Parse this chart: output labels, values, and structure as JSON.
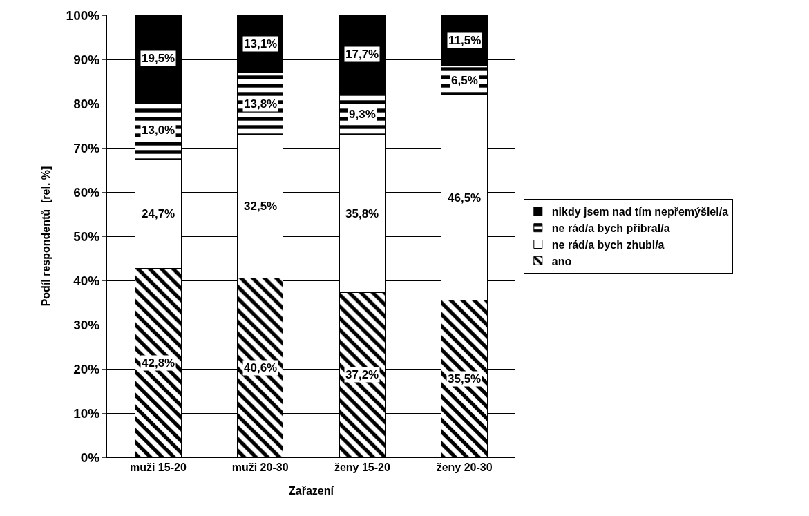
{
  "chart_data": {
    "type": "bar",
    "stacked": true,
    "xlabel": "Zařazení",
    "ylabel": "Podíl respondentů  [rel. %]",
    "categories": [
      "muži 15-20",
      "muži 20-30",
      "ženy 15-20",
      "ženy 20-30"
    ],
    "series": [
      {
        "name": "ano",
        "color": "#000000",
        "values": [
          42.8,
          40.6,
          37.2,
          35.5
        ],
        "value_labels": [
          "42,8%",
          "40,6%",
          "37,2%",
          "35,5%"
        ]
      },
      {
        "name": "ne rád/a bych zhubl/a",
        "color": "#ffffff",
        "values": [
          24.7,
          32.5,
          35.8,
          46.5
        ],
        "value_labels": [
          "24,7%",
          "32,5%",
          "35,8%",
          "46,5%"
        ]
      },
      {
        "name": "ne rád/a bych přibral/a",
        "color": "#000000",
        "values": [
          13.0,
          13.8,
          9.3,
          6.5
        ],
        "value_labels": [
          "13,0%",
          "13,8%",
          "9,3%",
          "6,5%"
        ]
      },
      {
        "name": "nikdy jsem nad tím nepřemýšlel/a",
        "color": "#000000",
        "values": [
          19.5,
          13.1,
          17.7,
          11.5
        ],
        "value_labels": [
          "19,5%",
          "13,1%",
          "17,7%",
          "11,5%"
        ]
      }
    ],
    "ylim": [
      0,
      100
    ],
    "yticks": [
      {
        "value": 0,
        "label": "0%"
      },
      {
        "value": 10,
        "label": "10%"
      },
      {
        "value": 20,
        "label": "20%"
      },
      {
        "value": 30,
        "label": "30%"
      },
      {
        "value": 40,
        "label": "40%"
      },
      {
        "value": 50,
        "label": "50%"
      },
      {
        "value": 60,
        "label": "60%"
      },
      {
        "value": 70,
        "label": "70%"
      },
      {
        "value": 80,
        "label": "80%"
      },
      {
        "value": 90,
        "label": "90%"
      },
      {
        "value": 100,
        "label": "100%"
      }
    ],
    "grid": "y",
    "legend": "right"
  }
}
